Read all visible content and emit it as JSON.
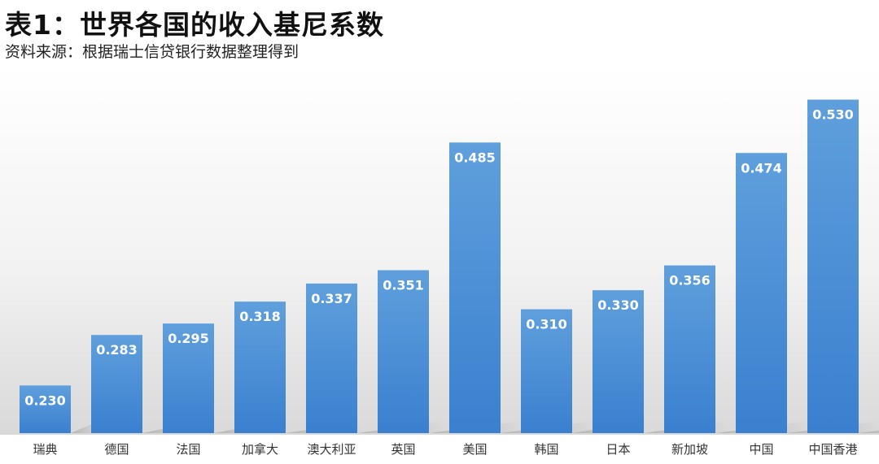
{
  "title": "表1：世界各国的收入基尼系数",
  "subtitle": "资料来源：根据瑞士信贷银行数据整理得到",
  "colors": {
    "bar_top": "#5f9fdc",
    "bar_bottom": "#3a80cf",
    "label": "#ffffff",
    "tick": "#333333"
  },
  "chart_data": {
    "type": "bar",
    "categories": [
      "瑞典",
      "德国",
      "法国",
      "加拿大",
      "澳大利亚",
      "英国",
      "美国",
      "韩国",
      "日本",
      "新加坡",
      "中国",
      "中国香港"
    ],
    "values": [
      0.23,
      0.283,
      0.295,
      0.318,
      0.337,
      0.351,
      0.485,
      0.31,
      0.33,
      0.356,
      0.474,
      0.53
    ],
    "data_labels": [
      "0.230",
      "0.283",
      "0.295",
      "0.318",
      "0.337",
      "0.351",
      "0.485",
      "0.310",
      "0.330",
      "0.356",
      "0.474",
      "0.530"
    ],
    "title": "表1：世界各国的收入基尼系数",
    "xlabel": "",
    "ylabel": "",
    "ylim": [
      0.18,
      0.545
    ],
    "grid": false,
    "legend": "none"
  }
}
